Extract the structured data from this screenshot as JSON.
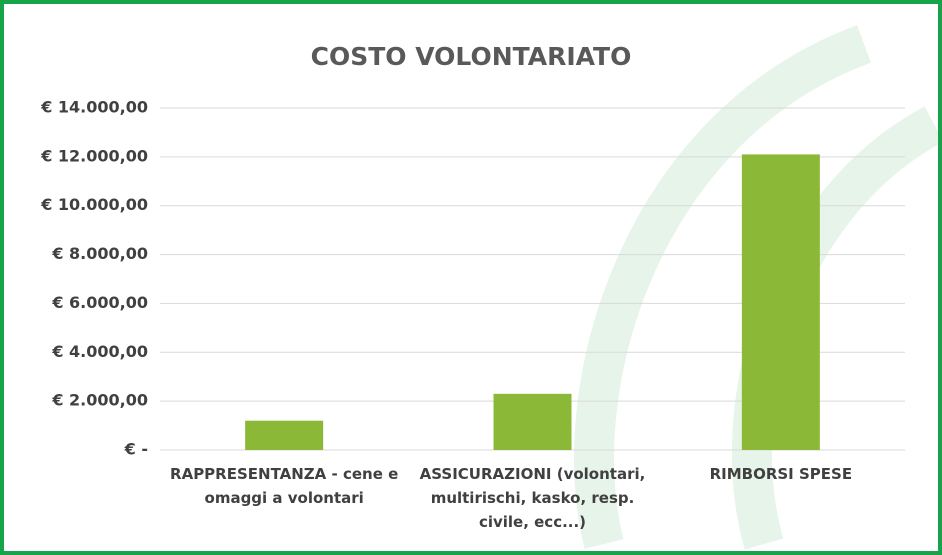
{
  "chart_data": {
    "type": "bar",
    "title": "COSTO VOLONTARIATO",
    "categories": [
      "RAPPRESENTANZA - cene e omaggi a volontari",
      "ASSICURAZIONI (volontari, multirischi, kasko, resp. civile, ecc...)",
      "RIMBORSI SPESE"
    ],
    "values": [
      1200,
      2300,
      12100
    ],
    "color": "#8bb837",
    "ylim": [
      0,
      14000
    ],
    "yticks": [
      {
        "value": 0,
        "label": "€ -"
      },
      {
        "value": 2000,
        "label": "€ 2.000,00"
      },
      {
        "value": 4000,
        "label": "€ 4.000,00"
      },
      {
        "value": 6000,
        "label": "€ 6.000,00"
      },
      {
        "value": 8000,
        "label": "€ 8.000,00"
      },
      {
        "value": 10000,
        "label": "€ 10.000,00"
      },
      {
        "value": 12000,
        "label": "€ 12.000,00"
      },
      {
        "value": 14000,
        "label": "€ 14.000,00"
      }
    ],
    "grid": true
  }
}
